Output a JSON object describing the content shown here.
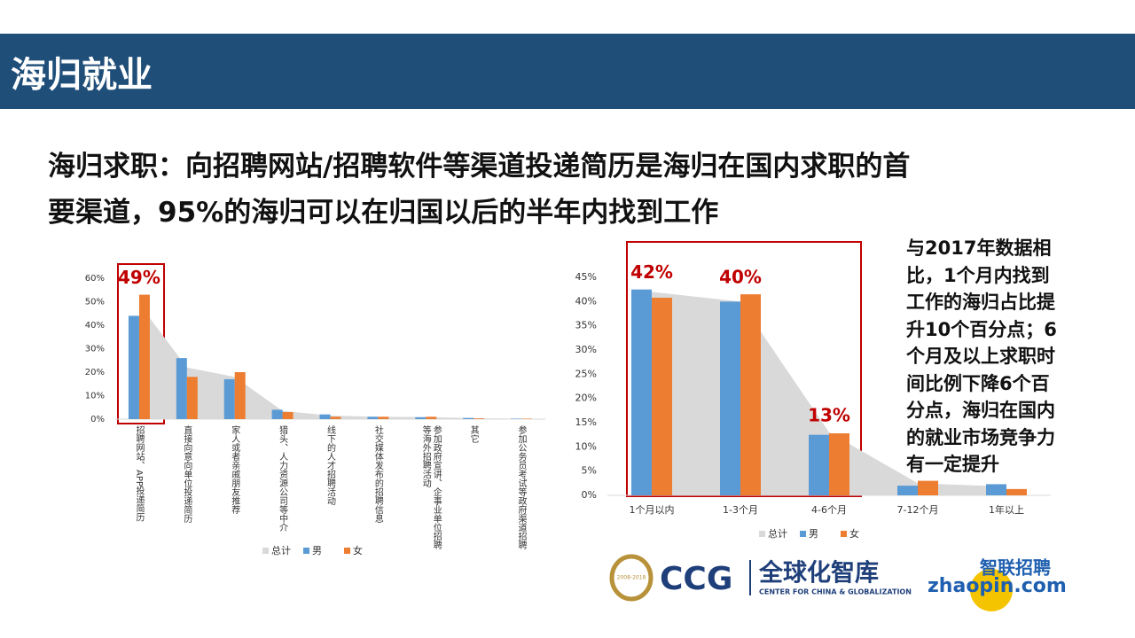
{
  "header": {
    "title": "海归就业"
  },
  "headline": [
    "海归求职：向招聘网站/招聘软件等渠道投递简历是海归在国内求职的首",
    "要渠道，95%的海归可以在归国以后的半年内找到工作"
  ],
  "note": [
    "与2017年数据相",
    "比，1个月内找到",
    "工作的海归占比提",
    "升10个百分点；6",
    "个月及以上求职时",
    "间比例下降6个百",
    "分点，海归在国内",
    "的就业市场竞争力",
    "有一定提升"
  ],
  "logos": {
    "ccg_years": "2008-2018",
    "ccg": "CCG",
    "ccg_cn": "全球化智库",
    "ccg_en": "CENTER FOR CHINA & GLOBALIZATION",
    "zhaopin_cn": "智联招聘",
    "zhaopin": "zhaopin.com"
  },
  "chart_data": [
    {
      "type": "bar",
      "legend": "bottom",
      "categories": [
        "招聘网站、APP投递简历",
        "直接向意向单位投递简历",
        "家人或者亲戚朋友推荐",
        "猎头、人力资源公司等中介",
        "线下的人才招聘活动",
        "社交媒体发布的招聘信息",
        "参加政府宣讲、企事业单位招聘等海外招聘活动",
        "其它",
        "参加公务员考试等政府渠道招聘"
      ],
      "series": [
        {
          "name": "总计",
          "kind": "area",
          "color": "#d9d9d9",
          "values": [
            49,
            22,
            18,
            3.5,
            1.5,
            1,
            0.9,
            0.4,
            0.2
          ],
          "value_labels": [
            "49%",
            null,
            null,
            null,
            null,
            null,
            null,
            null,
            null
          ]
        },
        {
          "name": "男",
          "color": "#5b9bd5",
          "values": [
            44,
            26,
            17,
            4,
            2,
            1,
            0.8,
            0.5,
            0.2
          ]
        },
        {
          "name": "女",
          "color": "#ed7d31",
          "values": [
            53,
            18,
            20,
            3,
            1,
            1,
            1,
            0.3,
            0.2
          ]
        }
      ],
      "ylim": [
        0,
        60
      ],
      "yticks": [
        {
          "value": 0,
          "label": "0%"
        },
        {
          "value": 10,
          "label": "10%"
        },
        {
          "value": 20,
          "label": "20%"
        },
        {
          "value": 30,
          "label": "30%"
        },
        {
          "value": 40,
          "label": "40%"
        },
        {
          "value": 50,
          "label": "50%"
        },
        {
          "value": 60,
          "label": "60%"
        }
      ]
    },
    {
      "type": "bar",
      "legend": "bottom",
      "categories": [
        "1个月以内",
        "1-3个月",
        "4-6个月",
        "7-12个月",
        "1年以上"
      ],
      "series": [
        {
          "name": "总计",
          "kind": "area",
          "color": "#d9d9d9",
          "values": [
            42,
            40,
            13,
            2.5,
            1.8
          ],
          "value_labels": [
            "42%",
            "40%",
            "13%",
            null,
            null
          ]
        },
        {
          "name": "男",
          "color": "#5b9bd5",
          "values": [
            42.5,
            40,
            12.5,
            2,
            2.3
          ]
        },
        {
          "name": "女",
          "color": "#ed7d31",
          "values": [
            40.8,
            41.5,
            12.8,
            3,
            1.3
          ]
        }
      ],
      "ylim": [
        0,
        45
      ],
      "yticks": [
        {
          "value": 0,
          "label": "0%"
        },
        {
          "value": 5,
          "label": "5%"
        },
        {
          "value": 10,
          "label": "10%"
        },
        {
          "value": 15,
          "label": "15%"
        },
        {
          "value": 20,
          "label": "20%"
        },
        {
          "value": 25,
          "label": "25%"
        },
        {
          "value": 30,
          "label": "30%"
        },
        {
          "value": 35,
          "label": "35%"
        },
        {
          "value": 40,
          "label": "40%"
        },
        {
          "value": 45,
          "label": "45%"
        }
      ]
    }
  ]
}
